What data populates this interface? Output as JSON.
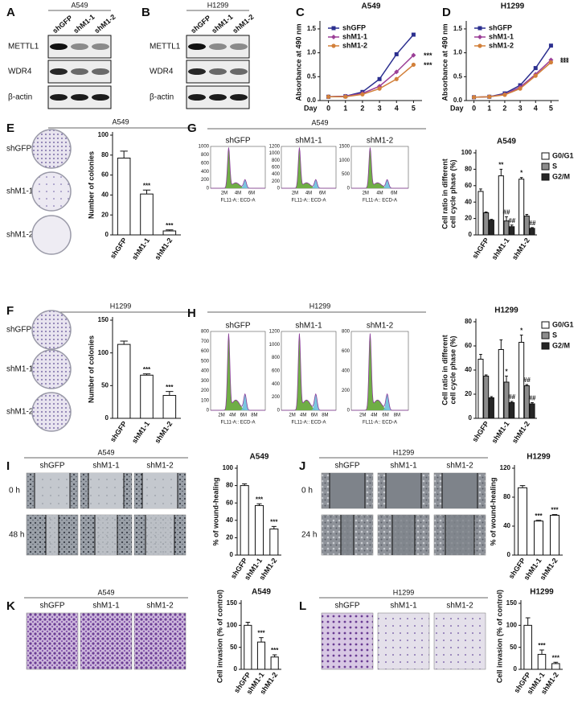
{
  "figure": {
    "A": {
      "letter": "A",
      "title": "A549",
      "lanes": [
        "shGFP",
        "shM1-1",
        "shM1-2"
      ],
      "rows": [
        "METTL1",
        "WDR4",
        "β-actin"
      ]
    },
    "B": {
      "letter": "B",
      "title": "H1299",
      "lanes": [
        "shGFP",
        "shM1-1",
        "shM1-2"
      ],
      "rows": [
        "METTL1",
        "WDR4",
        "β-actin"
      ]
    },
    "E": {
      "letter": "E",
      "title": "A549",
      "rows": [
        "shGFP",
        "shM1-1",
        "shM1-2"
      ]
    },
    "F": {
      "letter": "F",
      "title": "H1299",
      "rows": [
        "shGFP",
        "shM1-1",
        "shM1-2"
      ]
    },
    "G": {
      "letter": "G",
      "title": "A549",
      "plots": [
        {
          "name": "shGFP",
          "yticks": [
            0,
            200,
            400,
            600,
            800,
            1000
          ],
          "xticks": [
            "2M",
            "4M",
            "6M"
          ],
          "xlabel": "FL11-A:: ECD-A"
        },
        {
          "name": "shM1-1",
          "yticks": [
            0,
            200,
            400,
            600,
            800,
            1000,
            1200
          ],
          "xticks": [
            "2M",
            "4M",
            "6M"
          ],
          "xlabel": "FL11-A:: ECD-A"
        },
        {
          "name": "shM1-2",
          "yticks": [
            0,
            500,
            1000,
            1500
          ],
          "xticks": [
            "2M",
            "4M",
            "6M"
          ],
          "xlabel": "FL11-A:: ECD-A"
        }
      ]
    },
    "H": {
      "letter": "H",
      "title": "H1299",
      "plots": [
        {
          "name": "shGFP",
          "yticks": [
            0,
            100,
            200,
            300,
            400,
            500,
            600,
            700,
            800
          ],
          "xticks": [
            "2M",
            "4M",
            "6M",
            "8M"
          ],
          "xlabel": "FL11-A:: ECD-A"
        },
        {
          "name": "shM1-1",
          "yticks": [
            0,
            200,
            400,
            600,
            800,
            1000,
            1200
          ],
          "xticks": [
            "2M",
            "4M",
            "6M",
            "8M"
          ],
          "xlabel": "FL11-A:: ECD-A"
        },
        {
          "name": "shM1-2",
          "yticks": [
            0,
            200,
            400,
            600,
            800
          ],
          "xticks": [
            "2M",
            "4M",
            "6M",
            "8M"
          ],
          "xlabel": "FL11-A:: ECD-A"
        }
      ]
    },
    "I": {
      "letter": "I",
      "title": "A549",
      "columns": [
        "shGFP",
        "shM1-1",
        "shM1-2"
      ],
      "rows": [
        "0 h",
        "48 h"
      ]
    },
    "J": {
      "letter": "J",
      "title": "H1299",
      "columns": [
        "shGFP",
        "shM1-1",
        "shM1-2"
      ],
      "rows": [
        "0 h",
        "24 h"
      ]
    },
    "K": {
      "letter": "K",
      "title": "A549",
      "columns": [
        "shGFP",
        "shM1-1",
        "shM1-2"
      ]
    },
    "L": {
      "letter": "L",
      "title": "H1299",
      "columns": [
        "shGFP",
        "shM1-1",
        "shM1-2"
      ]
    }
  },
  "chart_data": [
    {
      "panel": "C",
      "type": "line",
      "title": "A549",
      "ylabel": "Absorbance at 490 nm",
      "xlabel": "Day",
      "x": [
        0,
        1,
        2,
        3,
        4,
        5
      ],
      "xlim": [
        -0.5,
        5.5
      ],
      "xticks": [
        0,
        1,
        2,
        3,
        4,
        5
      ],
      "ylim": [
        0,
        1.6
      ],
      "yticks": [
        {
          "value": 0,
          "label": "0.0"
        },
        {
          "value": 0.5,
          "label": "0.5"
        },
        {
          "value": 1,
          "label": "1.0"
        },
        {
          "value": 1.5,
          "label": "1.5"
        }
      ],
      "legend": "top-left",
      "series": [
        {
          "name": "shGFP",
          "color": "#2b2f8f",
          "marker": "square",
          "values": [
            0.08,
            0.09,
            0.18,
            0.45,
            0.97,
            1.38
          ]
        },
        {
          "name": "shM1-1",
          "color": "#9b3f97",
          "marker": "diamond",
          "values": [
            0.08,
            0.09,
            0.15,
            0.3,
            0.6,
            0.95
          ],
          "annotation": "***"
        },
        {
          "name": "shM1-2",
          "color": "#d2803a",
          "marker": "circle",
          "values": [
            0.08,
            0.08,
            0.13,
            0.25,
            0.45,
            0.75
          ],
          "annotation": "***"
        }
      ]
    },
    {
      "panel": "D",
      "type": "line",
      "title": "H1299",
      "ylabel": "Absorbance at 490 nm",
      "xlabel": "Day",
      "x": [
        0,
        1,
        2,
        3,
        4,
        5
      ],
      "xlim": [
        -0.5,
        5.5
      ],
      "xticks": [
        0,
        1,
        2,
        3,
        4,
        5
      ],
      "ylim": [
        0,
        1.6
      ],
      "yticks": [
        {
          "value": 0,
          "label": "0.0"
        },
        {
          "value": 0.5,
          "label": "0.5"
        },
        {
          "value": 1,
          "label": "1.0"
        },
        {
          "value": 1.5,
          "label": "1.5"
        }
      ],
      "legend": "top-left",
      "series": [
        {
          "name": "shGFP",
          "color": "#2b2f8f",
          "marker": "square",
          "values": [
            0.07,
            0.08,
            0.15,
            0.32,
            0.68,
            1.15
          ]
        },
        {
          "name": "shM1-1",
          "color": "#9b3f97",
          "marker": "diamond",
          "values": [
            0.07,
            0.08,
            0.13,
            0.28,
            0.55,
            0.85
          ],
          "annotation": "***"
        },
        {
          "name": "shM1-2",
          "color": "#d2803a",
          "marker": "circle",
          "values": [
            0.07,
            0.08,
            0.12,
            0.25,
            0.52,
            0.8
          ],
          "annotation": "***"
        }
      ]
    },
    {
      "type": "bar",
      "ylabel": "Number of colonies",
      "categories": [
        "shGFP",
        "shM1-1",
        "shM1-2"
      ],
      "values": [
        77,
        41,
        4
      ],
      "errors": [
        7,
        4,
        1
      ],
      "annotations": [
        null,
        "***",
        "***"
      ],
      "color": "#ffffff",
      "ylim": [
        0,
        100
      ],
      "yticks": [
        0,
        20,
        40,
        60,
        80,
        100
      ]
    },
    {
      "type": "bar",
      "title": "A549",
      "ylabel": [
        "Cell ratio in different",
        "cell cycle phase (%)"
      ],
      "categories": [
        "shGFP",
        "shM1-1",
        "shM1-2"
      ],
      "ylim": [
        0,
        100
      ],
      "yticks": [
        0,
        20,
        40,
        60,
        80,
        100
      ],
      "legend": "right",
      "series": [
        {
          "name": "G0/G1",
          "color": "#ffffff",
          "values": [
            53,
            72,
            68
          ],
          "errors": [
            3,
            8,
            2
          ],
          "annotations": [
            null,
            "**",
            "*"
          ]
        },
        {
          "name": "S",
          "color": "#8c8c8c",
          "values": [
            27,
            17,
            23
          ],
          "errors": [
            1,
            5,
            2
          ],
          "annotations": [
            null,
            "##",
            null
          ]
        },
        {
          "name": "G2/M",
          "color": "#262626",
          "values": [
            18,
            10,
            8
          ],
          "errors": [
            1,
            2,
            1
          ],
          "annotations": [
            null,
            "##",
            "##"
          ]
        }
      ]
    },
    {
      "type": "bar",
      "ylabel": "Number of colonies",
      "categories": [
        "shGFP",
        "shM1-1",
        "shM1-2"
      ],
      "values": [
        113,
        66,
        35
      ],
      "errors": [
        5,
        2,
        6
      ],
      "annotations": [
        null,
        "***",
        "***"
      ],
      "color": "#ffffff",
      "ylim": [
        0,
        150
      ],
      "yticks": [
        0,
        50,
        100,
        150
      ]
    },
    {
      "type": "bar",
      "title": "H1299",
      "ylabel": [
        "Cell ratio in different",
        "cell cycle phase (%)"
      ],
      "categories": [
        "shGFP",
        "shM1-1",
        "shM1-2"
      ],
      "ylim": [
        0,
        80
      ],
      "yticks": [
        0,
        20,
        40,
        60,
        80
      ],
      "legend": "right",
      "series": [
        {
          "name": "G0/G1",
          "color": "#ffffff",
          "values": [
            49,
            57,
            63
          ],
          "errors": [
            4,
            8,
            6
          ],
          "annotations": [
            null,
            null,
            "*"
          ]
        },
        {
          "name": "S",
          "color": "#8c8c8c",
          "values": [
            35,
            30,
            27
          ],
          "errors": [
            1,
            5,
            1
          ],
          "annotations": [
            null,
            "*",
            "##"
          ]
        },
        {
          "name": "G2/M",
          "color": "#262626",
          "values": [
            17,
            13,
            12
          ],
          "errors": [
            1,
            1,
            1
          ],
          "annotations": [
            null,
            "##",
            "##"
          ]
        }
      ]
    },
    {
      "type": "bar",
      "title": "A549",
      "ylabel": "% of wound-healing",
      "categories": [
        "shGFP",
        "shM1-1",
        "shM1-2"
      ],
      "values": [
        80,
        57,
        30
      ],
      "errors": [
        2,
        2,
        3
      ],
      "annotations": [
        null,
        "***",
        "***"
      ],
      "color": "#ffffff",
      "ylim": [
        0,
        100
      ],
      "yticks": [
        0,
        20,
        40,
        60,
        80,
        100
      ]
    },
    {
      "type": "bar",
      "title": "H1299",
      "ylabel": "% of wound-healing",
      "categories": [
        "shGFP",
        "shM1-1",
        "shM1-2"
      ],
      "values": [
        93,
        47,
        55
      ],
      "errors": [
        3,
        1,
        1
      ],
      "annotations": [
        null,
        "***",
        "***"
      ],
      "color": "#ffffff",
      "ylim": [
        0,
        120
      ],
      "yticks": [
        0,
        40,
        80,
        120
      ]
    },
    {
      "type": "bar",
      "title": "A549",
      "ylabel": "Cell invasion  (% of control)",
      "categories": [
        "shGFP",
        "shM1-1",
        "shM1-2"
      ],
      "values": [
        100,
        62,
        28
      ],
      "errors": [
        7,
        10,
        5
      ],
      "annotations": [
        null,
        "***",
        "***"
      ],
      "color": "#ffffff",
      "ylim": [
        0,
        150
      ],
      "yticks": [
        0,
        50,
        100,
        150
      ]
    },
    {
      "type": "bar",
      "title": "H1299",
      "ylabel": "Cell invasion  (% of control)",
      "categories": [
        "shGFP",
        "shM1-1",
        "shM1-2"
      ],
      "values": [
        100,
        34,
        13
      ],
      "errors": [
        17,
        10,
        3
      ],
      "annotations": [
        null,
        "***",
        "***"
      ],
      "color": "#ffffff",
      "ylim": [
        0,
        150
      ],
      "yticks": [
        0,
        50,
        100,
        150
      ]
    }
  ]
}
